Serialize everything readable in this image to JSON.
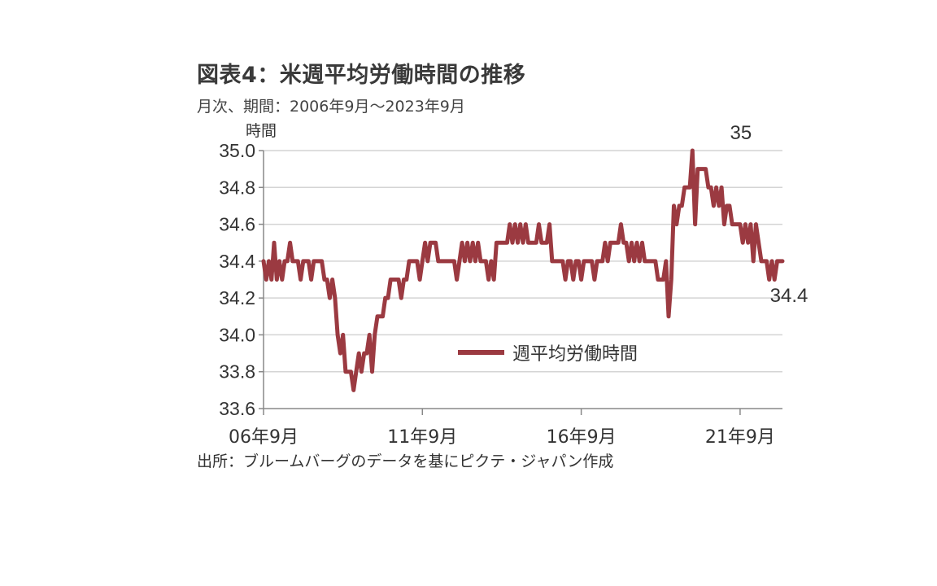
{
  "header": {
    "title": "図表4：米週平均労働時間の推移",
    "subtitle": "月次、期間：2006年9月～2023年9月"
  },
  "footer": {
    "source": "出所：ブルームバーグのデータを基にピクテ・ジャパン作成"
  },
  "chart_data": {
    "type": "line",
    "ylabel": "時間",
    "ylim": [
      33.6,
      35.0
    ],
    "yticks": [
      "35.0",
      "34.8",
      "34.6",
      "34.4",
      "34.2",
      "34.0",
      "33.8",
      "33.6"
    ],
    "xticks": [
      "06年9月",
      "11年9月",
      "16年9月",
      "21年9月"
    ],
    "x_start": "2006-09",
    "x_end": "2023-09",
    "grid": true,
    "legend_position": "center",
    "series": [
      {
        "name": "週平均労働時間",
        "color": "#9b3a41",
        "values": [
          34.4,
          34.3,
          34.4,
          34.3,
          34.5,
          34.3,
          34.4,
          34.3,
          34.4,
          34.4,
          34.5,
          34.4,
          34.4,
          34.4,
          34.3,
          34.4,
          34.4,
          34.4,
          34.3,
          34.4,
          34.4,
          34.4,
          34.4,
          34.3,
          34.3,
          34.2,
          34.3,
          34.2,
          34.0,
          33.9,
          34.0,
          33.8,
          33.8,
          33.8,
          33.7,
          33.8,
          33.9,
          33.8,
          33.9,
          33.9,
          34.0,
          33.8,
          34.0,
          34.1,
          34.1,
          34.1,
          34.2,
          34.2,
          34.3,
          34.3,
          34.3,
          34.3,
          34.2,
          34.3,
          34.3,
          34.4,
          34.4,
          34.4,
          34.4,
          34.3,
          34.4,
          34.5,
          34.4,
          34.5,
          34.5,
          34.5,
          34.4,
          34.4,
          34.4,
          34.4,
          34.4,
          34.4,
          34.4,
          34.3,
          34.4,
          34.5,
          34.4,
          34.5,
          34.4,
          34.5,
          34.4,
          34.5,
          34.4,
          34.4,
          34.4,
          34.3,
          34.4,
          34.3,
          34.5,
          34.5,
          34.5,
          34.5,
          34.5,
          34.6,
          34.5,
          34.6,
          34.5,
          34.6,
          34.5,
          34.6,
          34.5,
          34.5,
          34.5,
          34.5,
          34.6,
          34.5,
          34.5,
          34.5,
          34.6,
          34.4,
          34.4,
          34.4,
          34.4,
          34.4,
          34.3,
          34.4,
          34.4,
          34.3,
          34.4,
          34.4,
          34.3,
          34.4,
          34.4,
          34.4,
          34.4,
          34.3,
          34.4,
          34.4,
          34.4,
          34.5,
          34.4,
          34.5,
          34.5,
          34.5,
          34.5,
          34.6,
          34.5,
          34.5,
          34.4,
          34.5,
          34.4,
          34.5,
          34.4,
          34.5,
          34.4,
          34.4,
          34.4,
          34.4,
          34.4,
          34.3,
          34.3,
          34.3,
          34.4,
          34.1,
          34.3,
          34.7,
          34.6,
          34.7,
          34.7,
          34.8,
          34.8,
          34.8,
          35.0,
          34.6,
          34.9,
          34.9,
          34.9,
          34.9,
          34.8,
          34.8,
          34.7,
          34.8,
          34.7,
          34.8,
          34.6,
          34.7,
          34.7,
          34.6,
          34.6,
          34.6,
          34.6,
          34.5,
          34.6,
          34.5,
          34.6,
          34.4,
          34.6,
          34.5,
          34.4,
          34.4,
          34.4,
          34.3,
          34.4,
          34.3,
          34.4,
          34.4,
          34.4
        ]
      }
    ],
    "annotations": [
      {
        "text": "35",
        "x_index": 176,
        "value": 35.0,
        "position": "above"
      },
      {
        "text": "34.4",
        "x_index": 204,
        "value": 34.4,
        "position": "below"
      }
    ]
  }
}
